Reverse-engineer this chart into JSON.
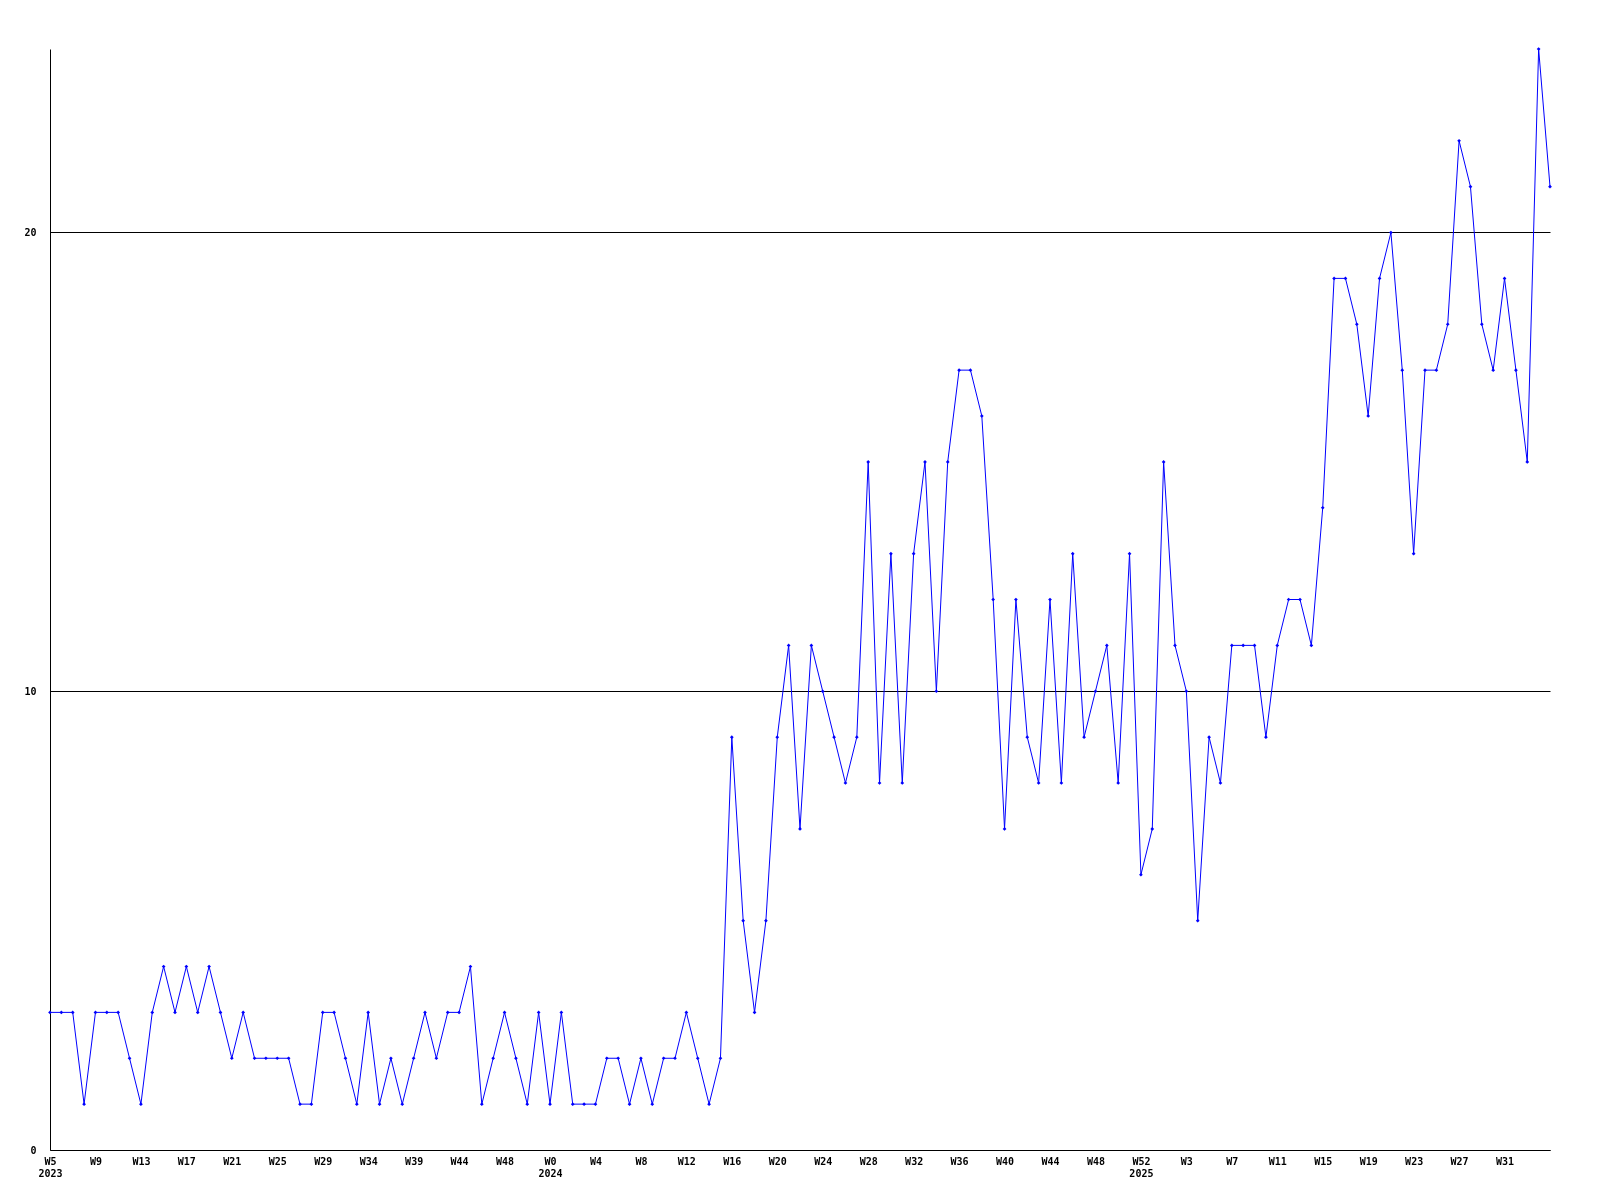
{
  "chart_data": {
    "type": "line",
    "categories": [
      "W5\n2023",
      null,
      null,
      null,
      "W9",
      null,
      null,
      null,
      "W13",
      null,
      null,
      null,
      "W17",
      null,
      null,
      null,
      "W21",
      null,
      null,
      null,
      "W25",
      null,
      null,
      null,
      "W29",
      null,
      null,
      null,
      "W34",
      null,
      null,
      null,
      "W39",
      null,
      null,
      null,
      "W44",
      null,
      null,
      null,
      "W48",
      null,
      null,
      null,
      "W0\n2024",
      null,
      null,
      null,
      "W4",
      null,
      null,
      null,
      "W8",
      null,
      null,
      null,
      "W12",
      null,
      null,
      null,
      "W16",
      null,
      null,
      null,
      "W20",
      null,
      null,
      null,
      "W24",
      null,
      null,
      null,
      "W28",
      null,
      null,
      null,
      "W32",
      null,
      null,
      null,
      "W36",
      null,
      null,
      null,
      "W40",
      null,
      null,
      null,
      "W44",
      null,
      null,
      null,
      "W48",
      null,
      null,
      null,
      "W52\n2025",
      null,
      null,
      null,
      "W3",
      null,
      null,
      null,
      "W7",
      null,
      null,
      null,
      "W11",
      null,
      null,
      null,
      "W15",
      null,
      null,
      null,
      "W19",
      null,
      null,
      null,
      "W23",
      null,
      null,
      null,
      "W27",
      null,
      null,
      null,
      "W31",
      null,
      null,
      null,
      null
    ],
    "series": [
      {
        "color": "#0000ff",
        "values": [
          3,
          3,
          3,
          1,
          3,
          3,
          3,
          2,
          1,
          3,
          4,
          3,
          4,
          3,
          4,
          3,
          2,
          3,
          2,
          2,
          2,
          2,
          1,
          1,
          3,
          3,
          2,
          1,
          3,
          1,
          2,
          1,
          2,
          3,
          2,
          3,
          3,
          4,
          1,
          2,
          3,
          2,
          1,
          3,
          1,
          3,
          1,
          1,
          1,
          2,
          2,
          1,
          2,
          1,
          2,
          2,
          3,
          2,
          1,
          2,
          9,
          5,
          3,
          5,
          9,
          11,
          7,
          11,
          10,
          9,
          8,
          9,
          15,
          8,
          13,
          8,
          13,
          15,
          10,
          15,
          17,
          17,
          16,
          12,
          7,
          12,
          9,
          8,
          12,
          8,
          13,
          9,
          10,
          11,
          8,
          13,
          6,
          7,
          15,
          11,
          10,
          5,
          9,
          8,
          11,
          11,
          11,
          9,
          11,
          12,
          12,
          11,
          14,
          19,
          19,
          18,
          16,
          19,
          20,
          17,
          13,
          17,
          17,
          18,
          22,
          21,
          18,
          17,
          19,
          17,
          15,
          24,
          21
        ]
      }
    ],
    "ylim": [
      0,
      24
    ],
    "yticks": [
      0,
      10,
      20
    ],
    "grid": "y",
    "legend": false,
    "marker": "diamond",
    "line_style": "solid"
  }
}
